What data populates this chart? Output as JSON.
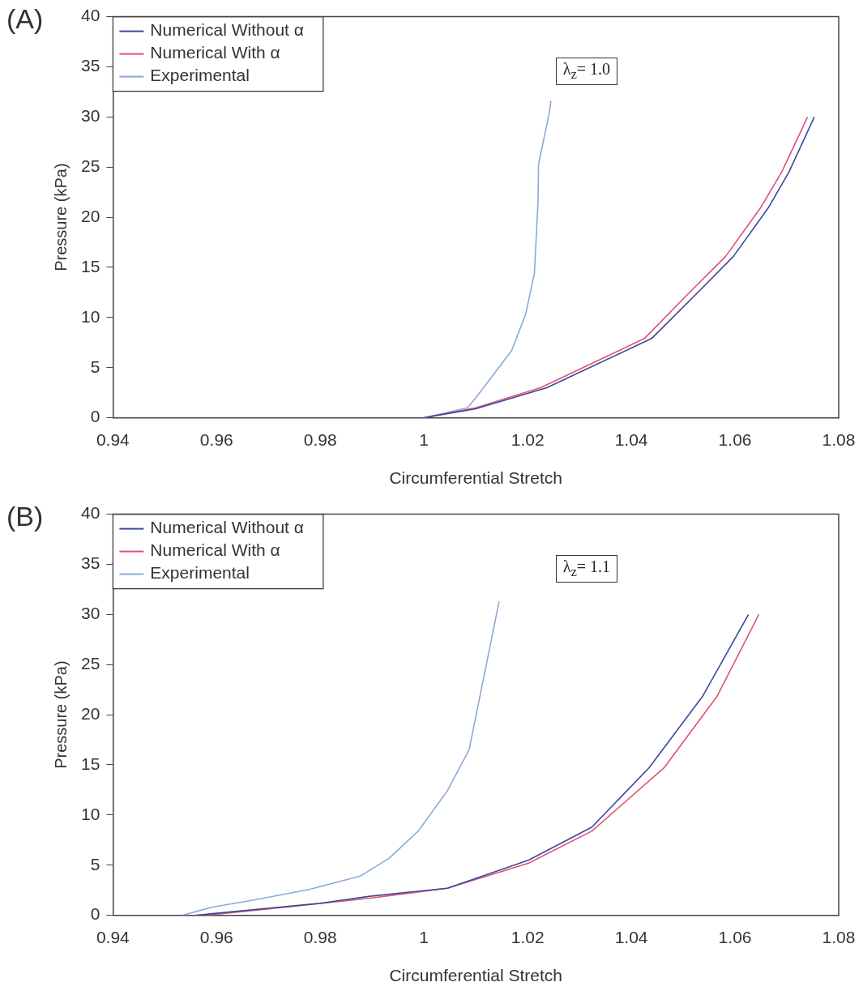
{
  "chart_data": [
    {
      "type": "line",
      "title": "(A)",
      "xlabel": "Circumferential Stretch",
      "ylabel": "Pressure (kPa)",
      "annotations": [
        "λ$_{z}$= 1.0"
      ],
      "xlim": [
        0.94,
        1.08
      ],
      "xticks": [
        0.94,
        0.96,
        0.98,
        1,
        1.02,
        1.04,
        1.06,
        1.08
      ],
      "ylim": [
        0,
        40
      ],
      "yticks": [
        0,
        5,
        10,
        15,
        20,
        25,
        30,
        35,
        40
      ],
      "grid": false,
      "legend": "top left",
      "marker": "none",
      "line_style": "solid",
      "series": [
        {
          "name": "Numerical Without α",
          "color": "#3a4a9a",
          "x": [
            1.0,
            1.01,
            1.0237,
            1.0439,
            1.0534,
            1.0597,
            1.0665,
            1.0704,
            1.0753
          ],
          "values": [
            0,
            0.9,
            3,
            7.9,
            12.8,
            16.1,
            21,
            24.5,
            30
          ]
        },
        {
          "name": "Numerical With α",
          "color": "#e0507a",
          "x": [
            1.0,
            1.01,
            1.0225,
            1.0425,
            1.0518,
            1.0582,
            1.065,
            1.069,
            1.074
          ],
          "values": [
            0,
            1,
            3,
            7.9,
            12.8,
            16.1,
            21,
            24.5,
            30
          ]
        },
        {
          "name": "Experimental",
          "color": "#8aaad8",
          "x": [
            1.0,
            1.0084,
            1.0106,
            1.0169,
            1.0196,
            1.0213,
            1.022,
            1.0221,
            1.0241,
            1.0245
          ],
          "values": [
            0,
            1,
            2.4,
            6.7,
            10.3,
            14.4,
            21.5,
            25.3,
            30.2,
            31.6
          ]
        }
      ]
    },
    {
      "type": "line",
      "title": "(B)",
      "xlabel": "Circumferential Stretch",
      "ylabel": "Pressure (kPa)",
      "annotations": [
        "λ$_{z}$= 1.1"
      ],
      "xlim": [
        0.94,
        1.08
      ],
      "xticks": [
        0.94,
        0.96,
        0.98,
        1,
        1.02,
        1.04,
        1.06,
        1.08
      ],
      "ylim": [
        0,
        40
      ],
      "yticks": [
        0,
        5,
        10,
        15,
        20,
        25,
        30,
        35,
        40
      ],
      "grid": false,
      "legend": "top left",
      "marker": "none",
      "line_style": "solid",
      "series": [
        {
          "name": "Numerical Without α",
          "color": "#3a4a9a",
          "x": [
            0.956,
            0.98,
            0.9896,
            1.0045,
            1.0202,
            1.0324,
            1.0434,
            1.0537,
            1.0626
          ],
          "values": [
            0,
            1.2,
            1.9,
            2.7,
            5.5,
            8.8,
            14.7,
            21.8,
            30
          ]
        },
        {
          "name": "Numerical With α",
          "color": "#e0507a",
          "x": [
            0.958,
            0.975,
            0.9896,
            1.0045,
            1.0202,
            1.0324,
            1.0463,
            1.0565,
            1.0646
          ],
          "values": [
            0,
            0.9,
            1.7,
            2.7,
            5.2,
            8.4,
            14.7,
            21.8,
            30
          ]
        },
        {
          "name": "Experimental",
          "color": "#8aaad8",
          "x": [
            0.9534,
            0.959,
            0.967,
            0.978,
            0.9877,
            0.9933,
            0.9989,
            1.0045,
            1.0087,
            1.0145
          ],
          "values": [
            0,
            0.8,
            1.5,
            2.6,
            3.9,
            5.7,
            8.4,
            12.4,
            16.5,
            31.3
          ]
        }
      ]
    }
  ]
}
